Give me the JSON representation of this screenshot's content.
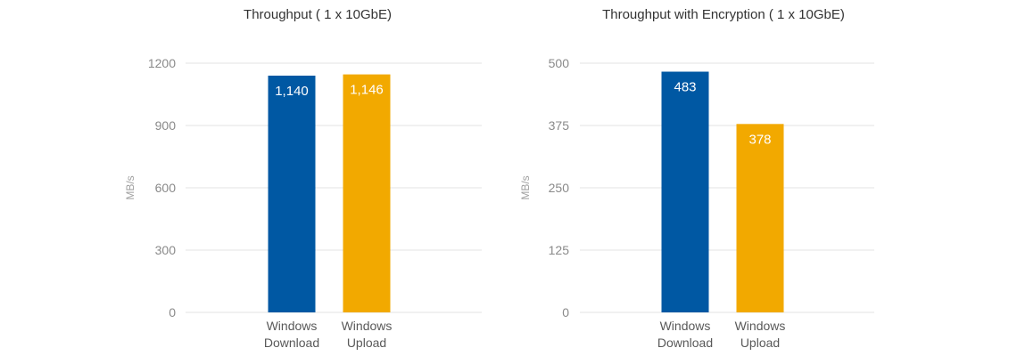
{
  "chart_data": [
    {
      "type": "bar",
      "title": "Throughput ( 1 x 10GbE)",
      "ylabel": "MB/s",
      "xlabel": "",
      "ylim": [
        0,
        1200
      ],
      "yticks": [
        "0",
        "300",
        "600",
        "900",
        "1200"
      ],
      "categories": [
        "Windows Download",
        "Windows Upload"
      ],
      "values": [
        1140,
        1146
      ],
      "data_labels": [
        "1,140",
        "1,146"
      ],
      "colors": [
        "#0058A3",
        "#F2A900"
      ],
      "grid": true,
      "legend": "none"
    },
    {
      "type": "bar",
      "title": "Throughput with Encryption ( 1 x 10GbE)",
      "ylabel": "MB/s",
      "xlabel": "",
      "ylim": [
        0,
        500
      ],
      "yticks": [
        "0",
        "125",
        "250",
        "375",
        "500"
      ],
      "categories": [
        "Windows Download",
        "Windows Upload"
      ],
      "values": [
        483,
        378
      ],
      "data_labels": [
        "483",
        "378"
      ],
      "colors": [
        "#0058A3",
        "#F2A900"
      ],
      "grid": true,
      "legend": "none"
    }
  ]
}
